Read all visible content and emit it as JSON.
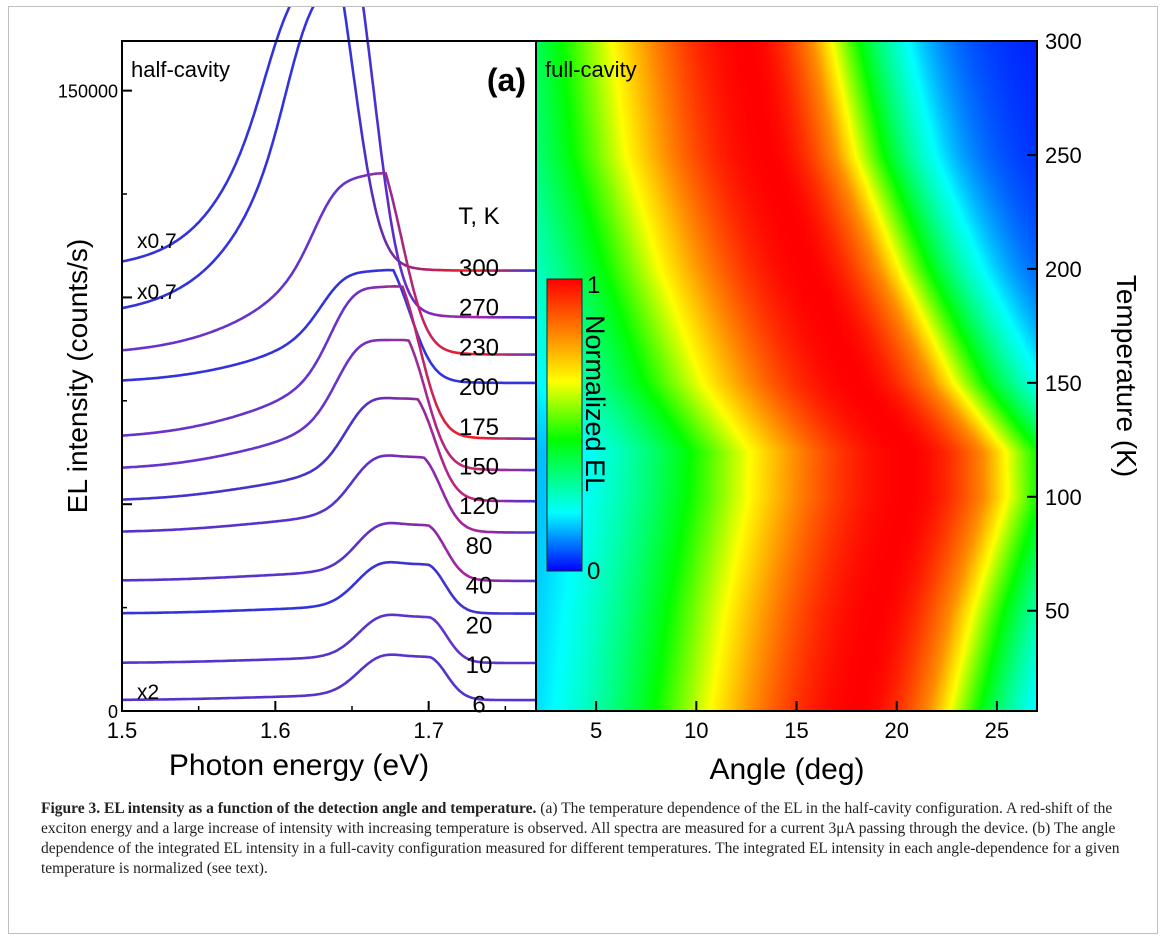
{
  "chart_data": [
    {
      "type": "line",
      "panel_label": "(a)",
      "annotation": "half-cavity",
      "xlabel": "Photon energy (eV)",
      "ylabel": "EL intensity (counts/s)",
      "xlim": [
        1.5,
        1.77
      ],
      "ylim": [
        0,
        162000
      ],
      "x_ticks": [
        "1.5",
        "1.6",
        "1.7"
      ],
      "y_tick_labels": [
        "0",
        "150000"
      ],
      "legend_title": "T, K",
      "temperatures": [
        "300",
        "270",
        "230",
        "200",
        "175",
        "150",
        "120",
        "80",
        "40",
        "20",
        "10",
        "6"
      ],
      "scale_labels": [
        "x0.7",
        "x0.7",
        "x2"
      ],
      "series": [
        {
          "T": 300,
          "offset": 112000,
          "peak_eV": 1.64,
          "peak_height": 46000,
          "colors": [
            "#3333dd",
            "#ff1a1a"
          ]
        },
        {
          "T": 270,
          "offset": 101000,
          "peak_eV": 1.654,
          "peak_height": 52000,
          "colors": [
            "#3333dd",
            "#aa22aa"
          ]
        },
        {
          "T": 230,
          "offset": 89000,
          "peak_eV": 1.672,
          "peak_height": 28000,
          "colors": [
            "#6633cc",
            "#ff1a1a"
          ]
        },
        {
          "T": 200,
          "offset": 81000,
          "peak_eV": 1.677,
          "peak_height": 18000,
          "colors": [
            "#3333dd",
            "#3333dd"
          ]
        },
        {
          "T": 175,
          "offset": 68000,
          "peak_eV": 1.683,
          "peak_height": 25000,
          "colors": [
            "#6633cc",
            "#ff1a1a"
          ]
        },
        {
          "T": 150,
          "offset": 60000,
          "peak_eV": 1.687,
          "peak_height": 22000,
          "colors": [
            "#6633cc",
            "#cc2266"
          ]
        },
        {
          "T": 120,
          "offset": 52000,
          "peak_eV": 1.693,
          "peak_height": 18000,
          "colors": [
            "#4433cc",
            "#cc2277"
          ]
        },
        {
          "T": 80,
          "offset": 44000,
          "peak_eV": 1.697,
          "peak_height": 14000,
          "colors": [
            "#5533cc",
            "#aa2299"
          ]
        },
        {
          "T": 40,
          "offset": 32000,
          "peak_eV": 1.7,
          "peak_height": 11000,
          "colors": [
            "#5533cc",
            "#aa2299"
          ]
        },
        {
          "T": 20,
          "offset": 24000,
          "peak_eV": 1.7,
          "peak_height": 10000,
          "colors": [
            "#3333dd",
            "#4433cc"
          ]
        },
        {
          "T": 10,
          "offset": 12000,
          "peak_eV": 1.701,
          "peak_height": 9500,
          "colors": [
            "#5533cc",
            "#6633cc"
          ]
        },
        {
          "T": 6,
          "offset": 3000,
          "peak_eV": 1.701,
          "peak_height": 9000,
          "colors": [
            "#5533cc",
            "#5533cc"
          ]
        }
      ]
    },
    {
      "type": "heatmap",
      "annotation": "full-cavity",
      "xlabel": "Angle (deg)",
      "ylabel": "Temperature (K)",
      "xlim": [
        2,
        27
      ],
      "ylim": [
        6,
        300
      ],
      "x_ticks": [
        "5",
        "10",
        "15",
        "20",
        "25"
      ],
      "y_ticks": [
        "50",
        "100",
        "150",
        "200",
        "250",
        "300"
      ],
      "colorbar": {
        "label": "Normalized EL",
        "min_label": "0",
        "max_label": "1"
      },
      "colorscale": [
        "#0000ff",
        "#00ffff",
        "#00ff00",
        "#ffff00",
        "#ff8000",
        "#ff0000"
      ],
      "ridge_peak_angle": [
        {
          "T": 6,
          "angle": 18.0
        },
        {
          "T": 50,
          "angle": 19.0
        },
        {
          "T": 100,
          "angle": 20.5
        },
        {
          "T": 120,
          "angle": 20.5
        },
        {
          "T": 150,
          "angle": 18.0
        },
        {
          "T": 200,
          "angle": 15.5
        },
        {
          "T": 250,
          "angle": 13.5
        },
        {
          "T": 300,
          "angle": 12.5
        }
      ],
      "ridge_width_deg": [
        {
          "T": 6,
          "width": 6.0
        },
        {
          "T": 50,
          "width": 6.2
        },
        {
          "T": 100,
          "width": 6.5
        },
        {
          "T": 150,
          "width": 6.3
        },
        {
          "T": 200,
          "width": 6.0
        },
        {
          "T": 300,
          "width": 5.5
        }
      ]
    }
  ],
  "caption": {
    "title": "Figure 3. EL intensity as a function of the detection angle and temperature.",
    "text": "(a) The temperature dependence of the EL in the half-cavity configuration. A red-shift of the exciton energy and a large increase of intensity with increasing temperature is observed. All spectra are measured for a current 3μA passing through the device. (b) The angle dependence of the integrated EL intensity in a full-cavity configuration measured for different temperatures. The integrated EL intensity in each angle-dependence for a given temperature is normalized (see text)."
  }
}
